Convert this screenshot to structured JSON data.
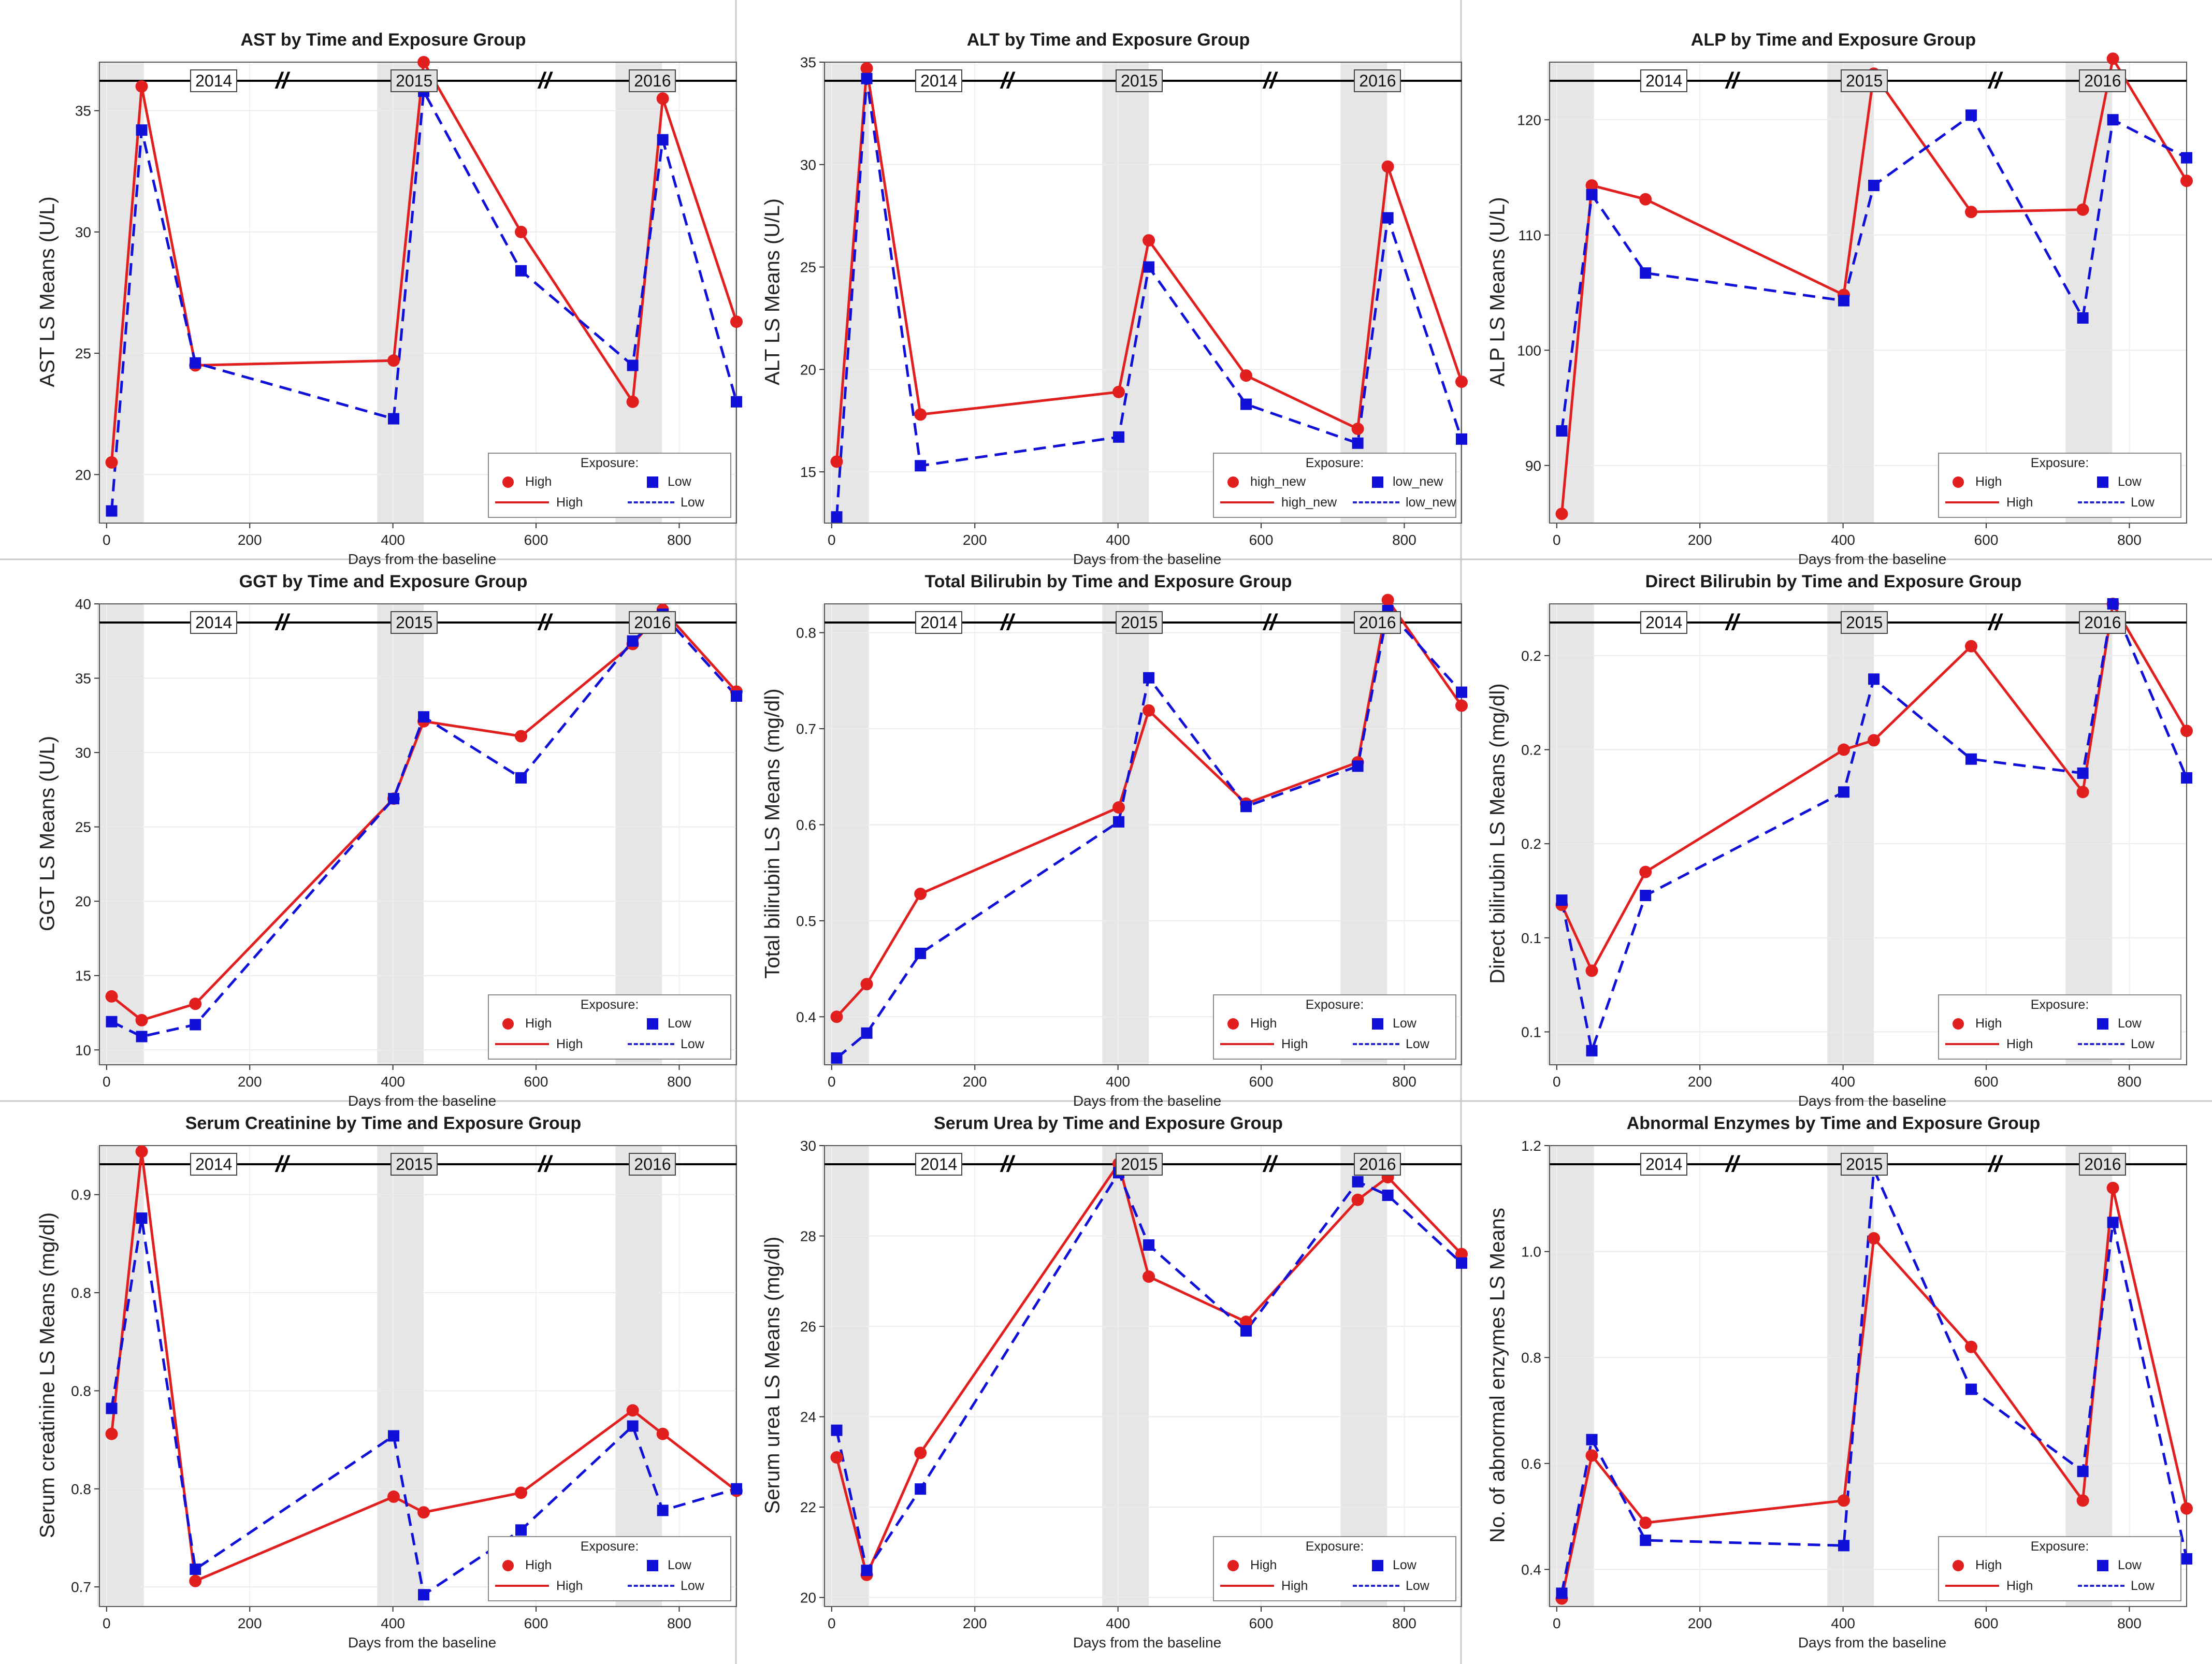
{
  "legend_title": "Exposure:",
  "x_axis_label": "Days from the baseline",
  "x_ticks": [
    0,
    200,
    400,
    600,
    800
  ],
  "year_markers": [
    "2014",
    "2015",
    "2016"
  ],
  "break_symbol": "//",
  "colors": {
    "high": "#e11f1f",
    "low": "#1010d8",
    "shading": "#e6e6e6",
    "divider": "#c8c8c8"
  },
  "chart_data": [
    {
      "type": "line",
      "title": "AST by Time and Exposure Group",
      "xlabel": "Days from the baseline",
      "ylabel": "AST LS Means (U/L)",
      "ylim": [
        18,
        37
      ],
      "yticks": [
        20,
        25,
        30,
        35
      ],
      "xlim": [
        -10,
        880
      ],
      "legend": {
        "high": "High",
        "low": "Low"
      },
      "series": [
        {
          "name": "High",
          "x": [
            7,
            49,
            124,
            401,
            443,
            579,
            735,
            777,
            880
          ],
          "y": [
            20.5,
            36.0,
            24.5,
            24.7,
            37.0,
            30.0,
            23.0,
            35.5,
            26.3
          ]
        },
        {
          "name": "Low",
          "x": [
            7,
            49,
            124,
            401,
            443,
            579,
            735,
            777,
            880
          ],
          "y": [
            18.5,
            34.2,
            24.6,
            22.3,
            35.8,
            28.4,
            24.5,
            33.8,
            23.0
          ]
        }
      ]
    },
    {
      "type": "line",
      "title": "ALT by Time and Exposure Group",
      "xlabel": "Days from the baseline",
      "ylabel": "ALT LS Means (U/L)",
      "ylim": [
        12.5,
        35
      ],
      "yticks": [
        15,
        20,
        25,
        30,
        35
      ],
      "xlim": [
        -10,
        880
      ],
      "legend": {
        "high": "high_new",
        "low": "low_new"
      },
      "series": [
        {
          "name": "high_new",
          "x": [
            7,
            49,
            124,
            401,
            443,
            579,
            735,
            777,
            880
          ],
          "y": [
            15.5,
            34.7,
            17.8,
            18.9,
            26.3,
            19.7,
            17.1,
            29.9,
            19.4
          ]
        },
        {
          "name": "low_new",
          "x": [
            7,
            49,
            124,
            401,
            443,
            579,
            735,
            777,
            880
          ],
          "y": [
            12.8,
            34.2,
            15.3,
            16.7,
            25.0,
            18.3,
            16.4,
            27.4,
            16.6
          ]
        }
      ]
    },
    {
      "type": "line",
      "title": "ALP by Time and Exposure Group",
      "xlabel": "Days from the baseline",
      "ylabel": "ALP LS Means (U/L)",
      "ylim": [
        85,
        125
      ],
      "yticks": [
        90,
        100,
        110,
        120
      ],
      "xlim": [
        -10,
        880
      ],
      "legend": {
        "high": "High",
        "low": "Low"
      },
      "series": [
        {
          "name": "High",
          "x": [
            7,
            49,
            124,
            401,
            443,
            579,
            735,
            777,
            880
          ],
          "y": [
            85.8,
            114.3,
            113.1,
            104.8,
            124.0,
            112.0,
            112.2,
            125.3,
            114.7
          ]
        },
        {
          "name": "Low",
          "x": [
            7,
            49,
            124,
            401,
            443,
            579,
            735,
            777,
            880
          ],
          "y": [
            93.0,
            113.5,
            106.7,
            104.3,
            114.3,
            120.4,
            102.8,
            120.0,
            116.7
          ]
        }
      ]
    },
    {
      "type": "line",
      "title": "GGT by Time and Exposure Group",
      "xlabel": "Days from the baseline",
      "ylabel": "GGT LS Means (U/L)",
      "ylim": [
        9,
        40
      ],
      "yticks": [
        10,
        15,
        20,
        25,
        30,
        35,
        40
      ],
      "xlim": [
        -10,
        880
      ],
      "legend": {
        "high": "High",
        "low": "Low"
      },
      "series": [
        {
          "name": "High",
          "x": [
            7,
            49,
            124,
            401,
            443,
            579,
            735,
            777,
            880
          ],
          "y": [
            13.6,
            12.0,
            13.1,
            26.9,
            32.1,
            31.1,
            37.3,
            39.6,
            34.1
          ]
        },
        {
          "name": "Low",
          "x": [
            7,
            49,
            124,
            401,
            443,
            579,
            735,
            777,
            880
          ],
          "y": [
            11.9,
            10.9,
            11.7,
            26.9,
            32.4,
            28.3,
            37.5,
            39.3,
            33.8
          ]
        }
      ]
    },
    {
      "type": "line",
      "title": "Total Bilirubin by Time and Exposure Group",
      "xlabel": "Days from the baseline",
      "ylabel": "Total bilirubin LS Means (mg/dl)",
      "ylim": [
        0.35,
        0.83
      ],
      "yticks": [
        0.4,
        0.5,
        0.6,
        0.7,
        0.8
      ],
      "xlim": [
        -10,
        880
      ],
      "legend": {
        "high": "High",
        "low": "Low"
      },
      "series": [
        {
          "name": "High",
          "x": [
            7,
            49,
            124,
            401,
            443,
            579,
            735,
            777,
            880
          ],
          "y": [
            0.4,
            0.434,
            0.528,
            0.618,
            0.719,
            0.622,
            0.665,
            0.834,
            0.724
          ]
        },
        {
          "name": "Low",
          "x": [
            7,
            49,
            124,
            401,
            443,
            579,
            735,
            777,
            880
          ],
          "y": [
            0.357,
            0.383,
            0.466,
            0.603,
            0.753,
            0.619,
            0.661,
            0.823,
            0.738
          ]
        }
      ]
    },
    {
      "type": "line",
      "title": "Direct Bilirubin by Time and Exposure Group",
      "xlabel": "Days from the baseline",
      "ylabel": "Direct bilirubin LS Means (mg/dl)",
      "ylim": [
        0.113,
        0.211
      ],
      "yticks": [
        0.12,
        0.14,
        0.16,
        0.18,
        0.2
      ],
      "xlim": [
        -10,
        880
      ],
      "legend": {
        "high": "High",
        "low": "Low"
      },
      "series": [
        {
          "name": "High",
          "x": [
            7,
            49,
            124,
            401,
            443,
            579,
            735,
            777,
            880
          ],
          "y": [
            0.147,
            0.133,
            0.154,
            0.18,
            0.182,
            0.202,
            0.171,
            0.211,
            0.184
          ]
        },
        {
          "name": "Low",
          "x": [
            7,
            49,
            124,
            401,
            443,
            579,
            735,
            777,
            880
          ],
          "y": [
            0.148,
            0.116,
            0.149,
            0.171,
            0.195,
            0.178,
            0.175,
            0.211,
            0.174
          ]
        }
      ]
    },
    {
      "type": "line",
      "title": "Serum Creatinine by Time and Exposure Group",
      "xlabel": "Days from the baseline",
      "ylabel": "Serum creatinine LS Means (mg/dl)",
      "ylim": [
        0.69,
        0.925
      ],
      "yticks": [
        0.7,
        0.75,
        0.8,
        0.85,
        0.9
      ],
      "xlim": [
        -10,
        880
      ],
      "legend": {
        "high": "High",
        "low": "Low"
      },
      "series": [
        {
          "name": "High",
          "x": [
            7,
            49,
            124,
            401,
            443,
            579,
            735,
            777,
            880
          ],
          "y": [
            0.778,
            0.922,
            0.703,
            0.746,
            0.738,
            0.748,
            0.79,
            0.778,
            0.749
          ]
        },
        {
          "name": "Low",
          "x": [
            7,
            49,
            124,
            401,
            443,
            579,
            735,
            777,
            880
          ],
          "y": [
            0.791,
            0.888,
            0.709,
            0.777,
            0.696,
            0.729,
            0.782,
            0.739,
            0.75
          ]
        }
      ]
    },
    {
      "type": "line",
      "title": "Serum Urea by Time and Exposure Group",
      "xlabel": "Days from the baseline",
      "ylabel": "Serum urea LS Means (mg/dl)",
      "ylim": [
        19.8,
        30
      ],
      "yticks": [
        20,
        22,
        24,
        26,
        28,
        30
      ],
      "xlim": [
        -10,
        880
      ],
      "legend": {
        "high": "High",
        "low": "Low"
      },
      "series": [
        {
          "name": "High",
          "x": [
            7,
            49,
            124,
            401,
            443,
            579,
            735,
            777,
            880
          ],
          "y": [
            23.1,
            20.5,
            23.2,
            29.6,
            27.1,
            26.1,
            28.8,
            29.3,
            27.6
          ]
        },
        {
          "name": "Low",
          "x": [
            7,
            49,
            124,
            401,
            443,
            579,
            735,
            777,
            880
          ],
          "y": [
            23.7,
            20.6,
            22.4,
            29.4,
            27.8,
            25.9,
            29.2,
            28.9,
            27.4
          ]
        }
      ]
    },
    {
      "type": "line",
      "title": "Abnormal Enzymes by Time and Exposure Group",
      "xlabel": "Days from the baseline",
      "ylabel": "No. of abnormal enzymes LS Means",
      "ylim": [
        0.33,
        1.2
      ],
      "yticks": [
        0.4,
        0.6,
        0.8,
        1.0,
        1.2
      ],
      "xlim": [
        -10,
        880
      ],
      "legend": {
        "high": "High",
        "low": "Low"
      },
      "series": [
        {
          "name": "High",
          "x": [
            7,
            49,
            124,
            401,
            443,
            579,
            735,
            777,
            880
          ],
          "y": [
            0.345,
            0.615,
            0.488,
            0.53,
            1.025,
            0.82,
            0.53,
            1.12,
            0.515
          ]
        },
        {
          "name": "Low",
          "x": [
            7,
            49,
            124,
            401,
            443,
            579,
            735,
            777,
            880
          ],
          "y": [
            0.355,
            0.645,
            0.455,
            0.445,
            1.155,
            0.74,
            0.585,
            1.055,
            0.42
          ]
        }
      ]
    }
  ]
}
